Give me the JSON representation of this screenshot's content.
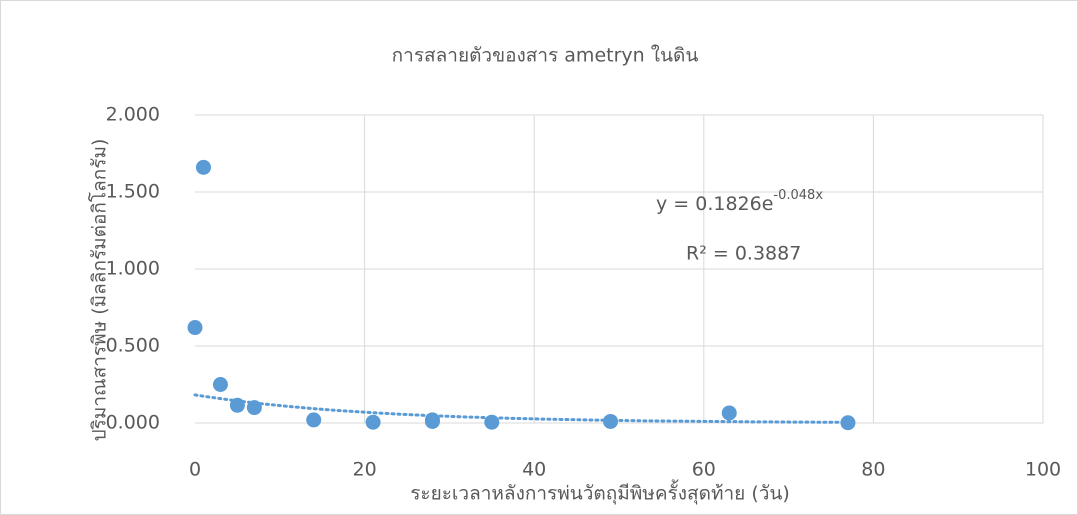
{
  "chart_data": {
    "type": "scatter",
    "title": "การสลายตัวของสาร ametryn ในดิน",
    "x_label": "ระยะเวลาหลังการพ่นวัตถุมีพิษครั้งสุดท้าย (วัน)",
    "y_label": "ปริมาณสารพิษ (มิลลิกรัมต่อกิโลกรัม)",
    "series": [
      {
        "color": "#5b9bd5",
        "x": [
          0,
          1,
          3,
          5,
          7,
          14,
          21,
          28,
          28,
          35,
          49,
          63,
          77
        ],
        "values": [
          0.62,
          1.66,
          0.25,
          0.115,
          0.1,
          0.02,
          0.005,
          0.02,
          0.01,
          0.005,
          0.01,
          0.065,
          0.002
        ]
      }
    ],
    "trendline": {
      "type": "exponential",
      "a": 0.1826,
      "b": -0.048,
      "xrange": [
        0,
        77
      ],
      "equation": "y = 0.1826e",
      "exponent": "-0.048x",
      "r2": "R² = 0.3887"
    },
    "xlim": [
      0,
      100
    ],
    "xticks": [
      0,
      20,
      40,
      60,
      80,
      100
    ],
    "ylim": [
      0,
      2
    ],
    "yticks": [
      {
        "value": 0,
        "label": "0.000"
      },
      {
        "value": 0.5,
        "label": "0.500"
      },
      {
        "value": 1,
        "label": "1.000"
      },
      {
        "value": 1.5,
        "label": "1.500"
      },
      {
        "value": 2,
        "label": "2.000"
      }
    ],
    "grid": true
  }
}
